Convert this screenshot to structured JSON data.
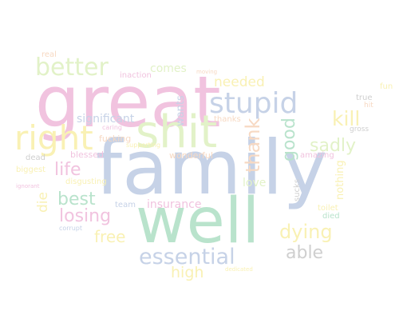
{
  "colors": {
    "background": "#ffffff",
    "pink": "#f1c3df",
    "blue": "#c6d2e7",
    "green": "#b9e3cc",
    "yellow": "#f9f1b4",
    "lime": "#e2f2c8",
    "peach": "#f7d9c3",
    "grey": "#cfcfcf"
  },
  "words": {
    "family": "family",
    "well": "well",
    "great": "great",
    "shit": "shit",
    "stupid": "stupid",
    "right": "right",
    "better": "better",
    "essential": "essential",
    "losing": "losing",
    "dying": "dying",
    "able": "able",
    "kill": "kill",
    "thank": "thank",
    "good": "good",
    "sadly": "sadly",
    "best": "best",
    "life": "life",
    "free": "free",
    "high": "high",
    "die": "die",
    "needed": "needed",
    "significant": "significant",
    "insurance": "insurance",
    "love": "love",
    "comes": "comes",
    "wants": "wants",
    "nothing": "nothing",
    "fucking": "fucking",
    "blessed": "blessed",
    "disgusting": "disgusting",
    "wonderful": "wonderful",
    "thanks": "thanks",
    "inaction": "inaction",
    "real": "real",
    "dead": "dead",
    "biggest": "biggest",
    "team": "team",
    "amazing": "amazing",
    "true": "true",
    "hit": "hit",
    "gross": "gross",
    "fun": "fun",
    "sucks": "sucks",
    "toilet": "toilet",
    "died": "died",
    "corrupt": "corrupt",
    "supporting": "supporting",
    "moving": "moving",
    "caring": "caring",
    "ignorant": "ignorant",
    "dedicated": "dedicated"
  }
}
